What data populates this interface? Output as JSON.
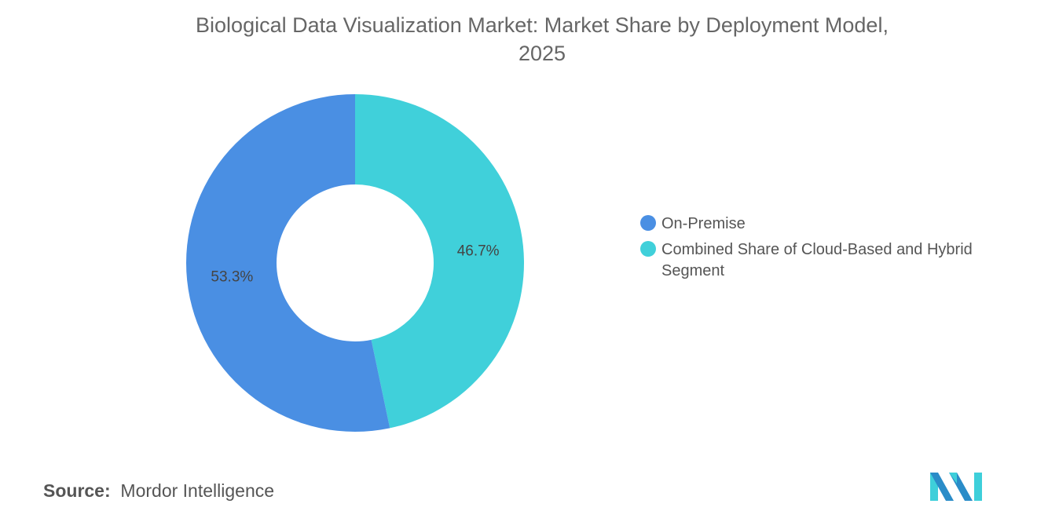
{
  "chart_data": {
    "type": "pie",
    "style": "donut",
    "title": "Biological Data Visualization Market: Market Share by Deployment Model, 2025",
    "categories": [
      "On-Premise",
      "Combined Share of Cloud-Based and Hybrid Segment"
    ],
    "values": [
      53.3,
      46.7
    ],
    "data_labels": [
      "53.3%",
      "46.7%"
    ],
    "colors": [
      "#4A8FE3",
      "#40D0DA"
    ],
    "legend_position": "right"
  },
  "title_line1": "Biological Data Visualization Market: Market Share by Deployment Model,",
  "title_line2": "2025",
  "source_label": "Source:",
  "source_value": "Mordor Intelligence"
}
